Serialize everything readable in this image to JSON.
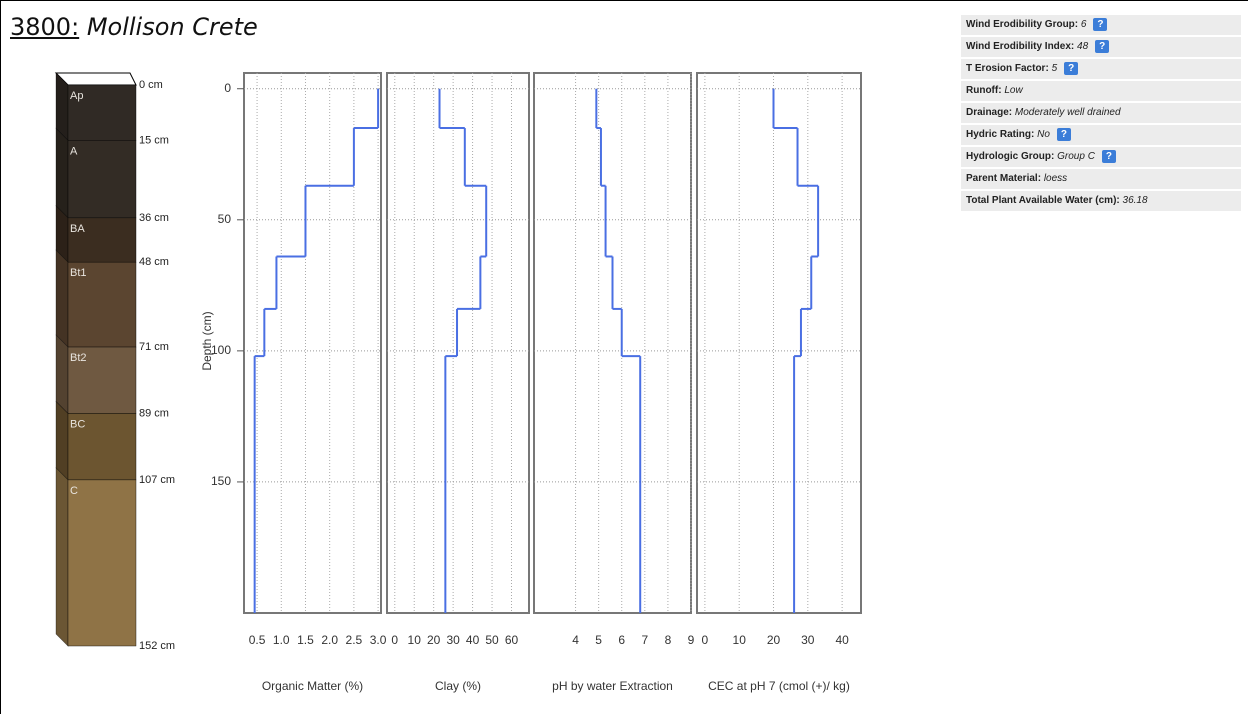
{
  "header": {
    "id": "3800:",
    "name": "Mollison Crete"
  },
  "soil_column": {
    "horizons": [
      "Ap",
      "A",
      "BA",
      "Bt1",
      "Bt2",
      "BC",
      "C"
    ],
    "colors": [
      "#302a25",
      "#332c25",
      "#3b2d20",
      "#5b4530",
      "#6f5941",
      "#6c5530",
      "#8f7346"
    ],
    "boundaries": [
      {
        "value": 0,
        "label": "0 cm"
      },
      {
        "value": 15,
        "label": "15 cm"
      },
      {
        "value": 36,
        "label": "36 cm"
      },
      {
        "value": 48,
        "label": "48 cm"
      },
      {
        "value": 71,
        "label": "71 cm"
      },
      {
        "value": 89,
        "label": "89 cm"
      },
      {
        "value": 107,
        "label": "107 cm"
      },
      {
        "value": 152,
        "label": "152 cm"
      }
    ]
  },
  "chart_data": [
    {
      "type": "step",
      "x_label": "Organic Matter (%)",
      "y_label": "Depth (cm)",
      "color": "#4a6fe3",
      "grid": true,
      "depths": [
        0,
        15,
        37,
        64,
        84,
        102,
        200
      ],
      "values": [
        3.0,
        2.5,
        1.5,
        0.9,
        0.65,
        0.45
      ],
      "xlim": [
        0.23,
        3.06
      ],
      "xticks": [
        0.5,
        {
          "value": 1,
          "label": "1.0"
        },
        1.5,
        {
          "value": 2,
          "label": "2.0"
        },
        2.5,
        {
          "value": 3,
          "label": "3.0"
        }
      ],
      "ylim": [
        -6,
        200
      ],
      "yticks": [
        0,
        50,
        100,
        150
      ]
    },
    {
      "type": "step",
      "x_label": "Clay (%)",
      "color": "#4a6fe3",
      "grid": true,
      "depths": [
        0,
        15,
        37,
        64,
        84,
        102,
        200
      ],
      "values": [
        23,
        36,
        47,
        44,
        32,
        26
      ],
      "xlim": [
        -4,
        69
      ],
      "xticks": [
        0,
        10,
        20,
        30,
        40,
        50,
        60
      ]
    },
    {
      "type": "step",
      "x_label": "pH by water Extraction",
      "color": "#4a6fe3",
      "grid": true,
      "depths": [
        0,
        15,
        37,
        64,
        84,
        102,
        200
      ],
      "values": [
        4.9,
        5.1,
        5.3,
        5.6,
        6.0,
        6.8
      ],
      "xlim": [
        2.2,
        9
      ],
      "xticks": [
        4,
        5,
        6,
        7,
        8,
        9
      ]
    },
    {
      "type": "step",
      "x_label": "CEC at pH 7 (cmol (+)/ kg)",
      "color": "#4a6fe3",
      "grid": true,
      "depths": [
        0,
        15,
        37,
        64,
        84,
        102,
        200
      ],
      "values": [
        20,
        27,
        33,
        31,
        28,
        26
      ],
      "xlim": [
        -2.3,
        45.5
      ],
      "xticks": [
        0,
        10,
        20,
        30,
        40
      ]
    }
  ],
  "properties": [
    {
      "label": "Wind Erodibility Group:",
      "value": "6",
      "help": "?"
    },
    {
      "label": "Wind Erodibility Index:",
      "value": "48",
      "help": "?"
    },
    {
      "label": "T Erosion Factor:",
      "value": "5",
      "help": "?"
    },
    {
      "label": "Runoff:",
      "value": "Low"
    },
    {
      "label": "Drainage:",
      "value": "Moderately well drained"
    },
    {
      "label": "Hydric Rating:",
      "value": "No",
      "help": "?"
    },
    {
      "label": "Hydrologic Group:",
      "value": "Group C",
      "help": "?"
    },
    {
      "label": "Parent Material:",
      "value": "loess"
    },
    {
      "label": "Total Plant Available Water (cm):",
      "value": "36.18"
    }
  ]
}
